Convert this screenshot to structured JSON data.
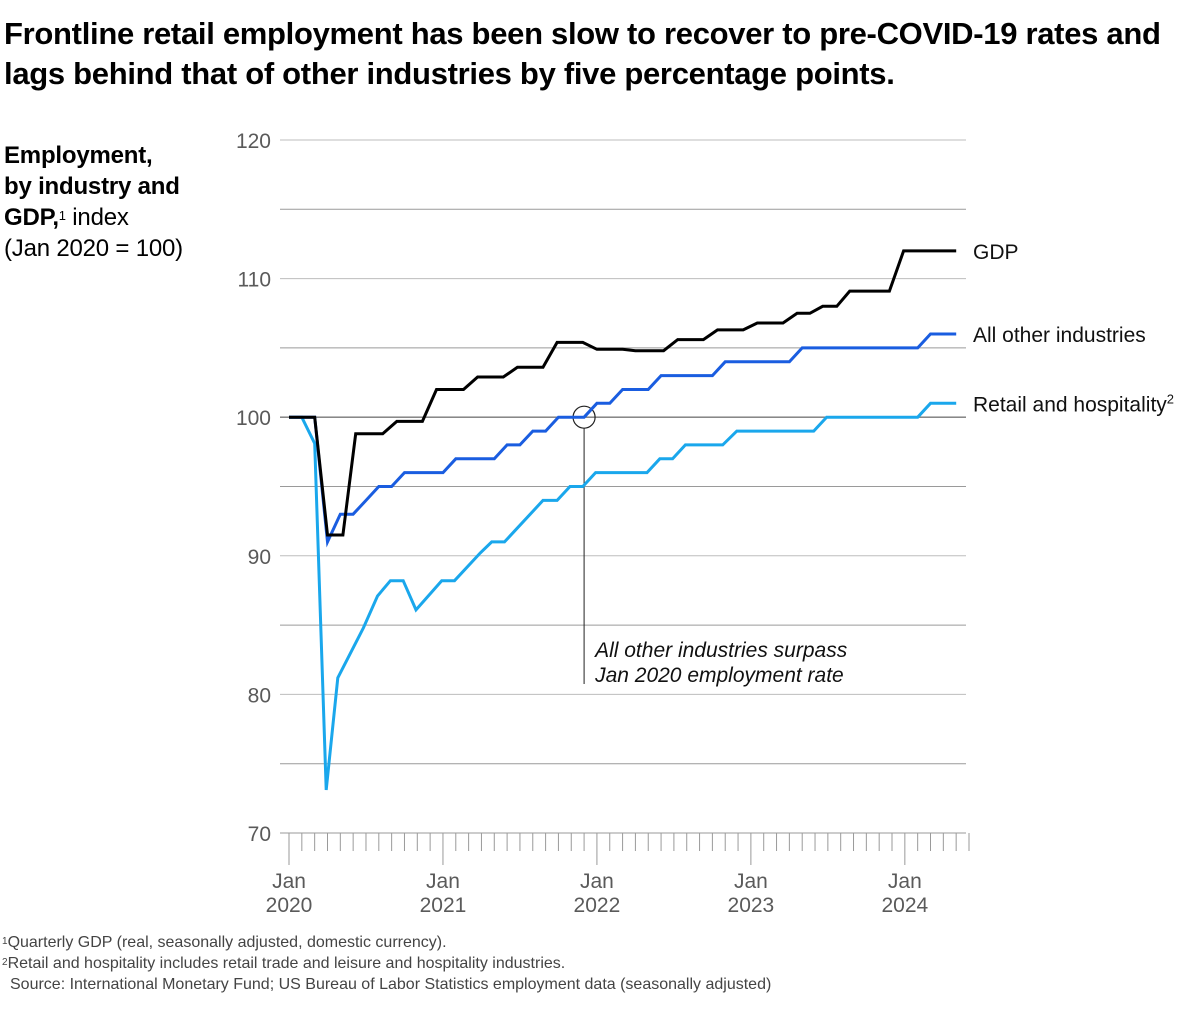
{
  "title": "Frontline retail employment has been slow to recover to pre-COVID-19 rates and lags behind that of other industries by five percentage points.",
  "y_axis_label": {
    "line1_bold": "Employment,",
    "line2_bold": "by industry and",
    "line3_bold": "GDP,",
    "line3_sup": "1",
    "line3_rest": " index",
    "line4": "(Jan 2020 = 100)"
  },
  "footnotes": {
    "note1_marker": "1",
    "note1": "Quarterly GDP (real, seasonally adjusted, domestic currency).",
    "note2_marker": "2",
    "note2": "Retail and hospitality includes retail trade and leisure and hospitality industries.",
    "source": "Source: International Monetary Fund; US Bureau of Labor Statistics employment data (seasonally adjusted)"
  },
  "chart_data": {
    "type": "line",
    "title": "Employment, by industry and GDP, index (Jan 2020 = 100)",
    "xlabel": "",
    "ylabel": "Index (Jan 2020 = 100)",
    "x_unit": "months since Jan 2020",
    "xlim": [
      0,
      53
    ],
    "ylim": [
      70,
      120
    ],
    "y_ticks": [
      70,
      80,
      90,
      100,
      110,
      120
    ],
    "y_gridlines": [
      75,
      80,
      85,
      90,
      95,
      100,
      105,
      110,
      115,
      120
    ],
    "x_ticks": [
      {
        "month": 0,
        "label_top": "Jan",
        "label_bottom": "2020"
      },
      {
        "month": 12,
        "label_top": "Jan",
        "label_bottom": "2021"
      },
      {
        "month": 24,
        "label_top": "Jan",
        "label_bottom": "2022"
      },
      {
        "month": 36,
        "label_top": "Jan",
        "label_bottom": "2023"
      },
      {
        "month": 48,
        "label_top": "Jan",
        "label_bottom": "2024"
      }
    ],
    "minor_tick_last_month": 53,
    "grid": true,
    "legend": "direct labels at right end of lines",
    "series": [
      {
        "name": "GDP",
        "label": "GDP",
        "label_sup": "",
        "color": "#000000",
        "points": [
          [
            0,
            100
          ],
          [
            2,
            100
          ],
          [
            3,
            91.5
          ],
          [
            4.2,
            91.5
          ],
          [
            5.2,
            98.8
          ],
          [
            7.3,
            98.8
          ],
          [
            8.4,
            99.7
          ],
          [
            10.4,
            99.7
          ],
          [
            11.5,
            102.0
          ],
          [
            13.6,
            102.0
          ],
          [
            14.7,
            102.9
          ],
          [
            16.7,
            102.9
          ],
          [
            17.8,
            103.6
          ],
          [
            19.8,
            103.6
          ],
          [
            20.9,
            105.4
          ],
          [
            22.9,
            105.4
          ],
          [
            24,
            104.9
          ],
          [
            26,
            104.9
          ],
          [
            27,
            104.8
          ],
          [
            29.2,
            104.8
          ],
          [
            30.3,
            105.6
          ],
          [
            32.3,
            105.6
          ],
          [
            33.4,
            106.3
          ],
          [
            35.4,
            106.3
          ],
          [
            36.5,
            106.8
          ],
          [
            38.5,
            106.8
          ],
          [
            39.6,
            107.5
          ],
          [
            40.6,
            107.5
          ],
          [
            41.6,
            108.0
          ],
          [
            42.7,
            108.0
          ],
          [
            43.7,
            109.1
          ],
          [
            46.8,
            109.1
          ],
          [
            47.9,
            112.0
          ],
          [
            52,
            112.0
          ]
        ]
      },
      {
        "name": "All other industries",
        "label": "All other industries",
        "label_sup": "",
        "color": "#1a5de0",
        "points": [
          [
            0,
            100
          ],
          [
            2,
            100
          ],
          [
            3,
            91.0
          ],
          [
            4,
            93.0
          ],
          [
            5,
            93.0
          ],
          [
            6,
            94.0
          ],
          [
            7,
            95.0
          ],
          [
            8,
            95.0
          ],
          [
            9,
            96.0
          ],
          [
            12,
            96.0
          ],
          [
            13,
            97.0
          ],
          [
            16,
            97.0
          ],
          [
            17,
            98.0
          ],
          [
            18,
            98.0
          ],
          [
            19,
            99.0
          ],
          [
            20,
            99.0
          ],
          [
            21,
            100.0
          ],
          [
            23,
            100.0
          ],
          [
            24,
            101.0
          ],
          [
            25,
            101.0
          ],
          [
            26,
            102.0
          ],
          [
            28,
            102.0
          ],
          [
            29,
            103.0
          ],
          [
            33,
            103.0
          ],
          [
            34,
            104.0
          ],
          [
            39,
            104.0
          ],
          [
            40,
            105.0
          ],
          [
            49,
            105.0
          ],
          [
            50,
            106.0
          ],
          [
            52,
            106.0
          ]
        ]
      },
      {
        "name": "Retail and hospitality",
        "label": "Retail and hospitality",
        "label_sup": "2",
        "color": "#1aa7ec",
        "points": [
          [
            0,
            100
          ],
          [
            1,
            100
          ],
          [
            2,
            98.1
          ],
          [
            2.9,
            73.1
          ],
          [
            3.8,
            81.2
          ],
          [
            5.8,
            84.8
          ],
          [
            6.9,
            87.1
          ],
          [
            7.9,
            88.2
          ],
          [
            8.9,
            88.2
          ],
          [
            9.9,
            86.1
          ],
          [
            11.9,
            88.2
          ],
          [
            12.9,
            88.2
          ],
          [
            14.9,
            90.2
          ],
          [
            15.8,
            91.0
          ],
          [
            16.8,
            91.0
          ],
          [
            19.8,
            94.0
          ],
          [
            20.9,
            94.0
          ],
          [
            21.9,
            95.0
          ],
          [
            22.9,
            95.0
          ],
          [
            23.9,
            96.0
          ],
          [
            27.9,
            96.0
          ],
          [
            28.9,
            97.0
          ],
          [
            29.9,
            97.0
          ],
          [
            30.9,
            98.0
          ],
          [
            33.8,
            98.0
          ],
          [
            34.9,
            99.0
          ],
          [
            40.9,
            99.0
          ],
          [
            41.9,
            100.0
          ],
          [
            49,
            100.0
          ],
          [
            50,
            101.0
          ],
          [
            52,
            101.0
          ]
        ]
      }
    ],
    "annotation": {
      "line1": "All other industries surpass",
      "line2": "Jan 2020 employment rate",
      "month": 23,
      "value": 100,
      "marker": "circle"
    }
  }
}
